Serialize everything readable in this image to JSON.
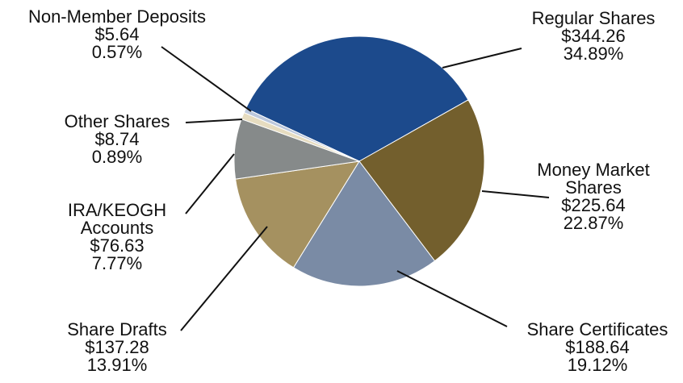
{
  "chart_data": {
    "type": "pie",
    "categories": [
      "Regular Shares",
      "Money Market Shares",
      "Share Certificates",
      "Share Drafts",
      "IRA/KEOGH Accounts",
      "Other Shares",
      "Non-Member Deposits"
    ],
    "values": [
      34.89,
      22.87,
      19.12,
      13.91,
      7.77,
      0.89,
      0.57
    ],
    "value_labels": [
      "34.89%",
      "22.87%",
      "19.12%",
      "13.91%",
      "7.77%",
      "0.89%",
      "0.57%"
    ],
    "amounts": [
      344.26,
      225.64,
      188.64,
      137.28,
      76.63,
      8.74,
      5.64
    ],
    "amount_labels": [
      "$344.26",
      "$225.64",
      "$188.64",
      "$137.28",
      "$76.63",
      "$8.74",
      "$5.64"
    ],
    "colors": [
      "#1c4a8c",
      "#735f2d",
      "#7a8ba5",
      "#a59160",
      "#868a8a",
      "#e6dcc0",
      "#bcc8dc"
    ]
  }
}
